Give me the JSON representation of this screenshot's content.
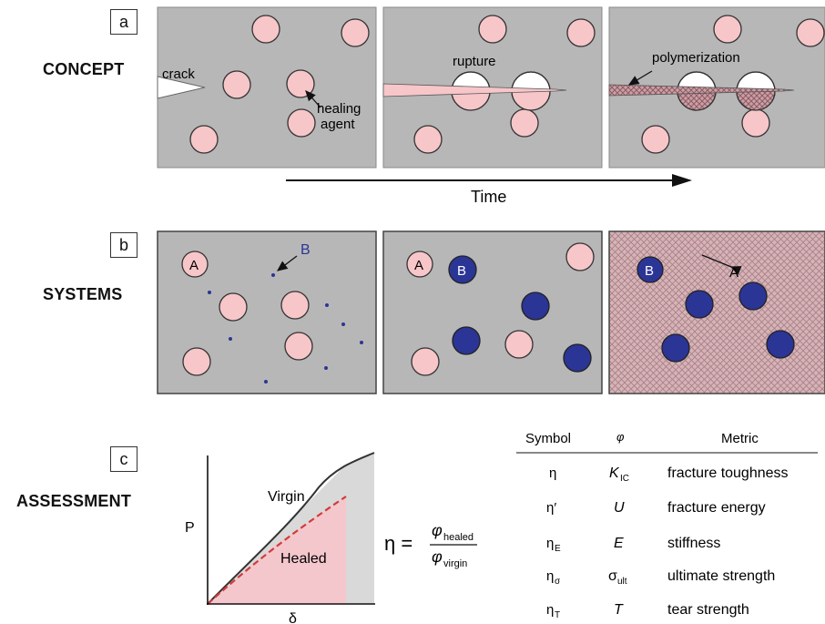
{
  "panel_a": {
    "letter": "a",
    "title": "CONCEPT",
    "label_crack": "crack",
    "label_healing_1": "healing",
    "label_healing_2": "agent",
    "label_rupture": "rupture",
    "label_polymerization": "polymerization",
    "time_label": "Time"
  },
  "panel_b": {
    "letter": "b",
    "title": "SYSTEMS",
    "label_A": "A",
    "label_B": "B"
  },
  "panel_c": {
    "letter": "c",
    "title": "ASSESSMENT",
    "y_label": "P",
    "x_label": "δ",
    "virgin_label": "Virgin",
    "healed_label": "Healed",
    "eq_lhs": "η =",
    "eq_num_phi": "φ",
    "eq_num_sub": "healed",
    "eq_den_phi": "φ",
    "eq_den_sub": "virgin",
    "table": {
      "headers": [
        "Symbol",
        "φ",
        "Metric"
      ],
      "rows": [
        {
          "sym": "η",
          "sym_sub": "",
          "phi": "K",
          "phi_sub": "IC",
          "metric": "fracture toughness"
        },
        {
          "sym": "η′",
          "sym_sub": "",
          "phi": "U",
          "phi_sub": "",
          "metric": "fracture energy"
        },
        {
          "sym": "η",
          "sym_sub": "E",
          "phi": "E",
          "phi_sub": "",
          "metric": "stiffness"
        },
        {
          "sym": "η",
          "sym_sub": "σ",
          "phi": "σ",
          "phi_sub": "ult",
          "metric": "ultimate strength"
        },
        {
          "sym": "η",
          "sym_sub": "T",
          "phi": "T",
          "phi_sub": "",
          "metric": "tear strength"
        }
      ]
    }
  },
  "colors": {
    "panel_gray": "#b7b7b7",
    "capsule_pink": "#f7c6c9",
    "catalyst_blue": "#2b3596",
    "healed_fill": "#f4c7cc",
    "virgin_fill": "#d9d9d9",
    "dashed_red": "#d23b3b"
  }
}
